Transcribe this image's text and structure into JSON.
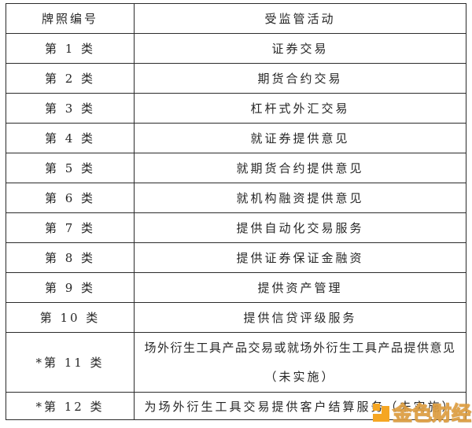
{
  "table": {
    "headers": {
      "license": "牌照编号",
      "activity": "受监管活动"
    },
    "rows": [
      {
        "license": "第 1 类",
        "activity": "证券交易"
      },
      {
        "license": "第 2 类",
        "activity": "期货合约交易"
      },
      {
        "license": "第 3 类",
        "activity": "杠杆式外汇交易"
      },
      {
        "license": "第 4 类",
        "activity": "就证券提供意见"
      },
      {
        "license": "第 5 类",
        "activity": "就期货合约提供意见"
      },
      {
        "license": "第 6 类",
        "activity": "就机构融资提供意见"
      },
      {
        "license": "第 7 类",
        "activity": "提供自动化交易服务"
      },
      {
        "license": "第 8 类",
        "activity": "提供证券保证金融资"
      },
      {
        "license": "第 9 类",
        "activity": "提供资产管理"
      },
      {
        "license": "第 10 类",
        "activity": "提供信贷评级服务"
      },
      {
        "license": "*第 11 类",
        "activity": "场外衍生工具产品交易或就场外衍生工具产品提供意见",
        "activity2": "（未实施）"
      },
      {
        "license": "*第 12 类",
        "activity": "为场外衍生工具交易提供客户结算服务（未实施）"
      }
    ]
  },
  "watermark": {
    "text": "金色财经",
    "accent_color": "#F5A623"
  },
  "colors": {
    "border": "#2b2b2b",
    "text": "#262626",
    "background": "#ffffff"
  }
}
